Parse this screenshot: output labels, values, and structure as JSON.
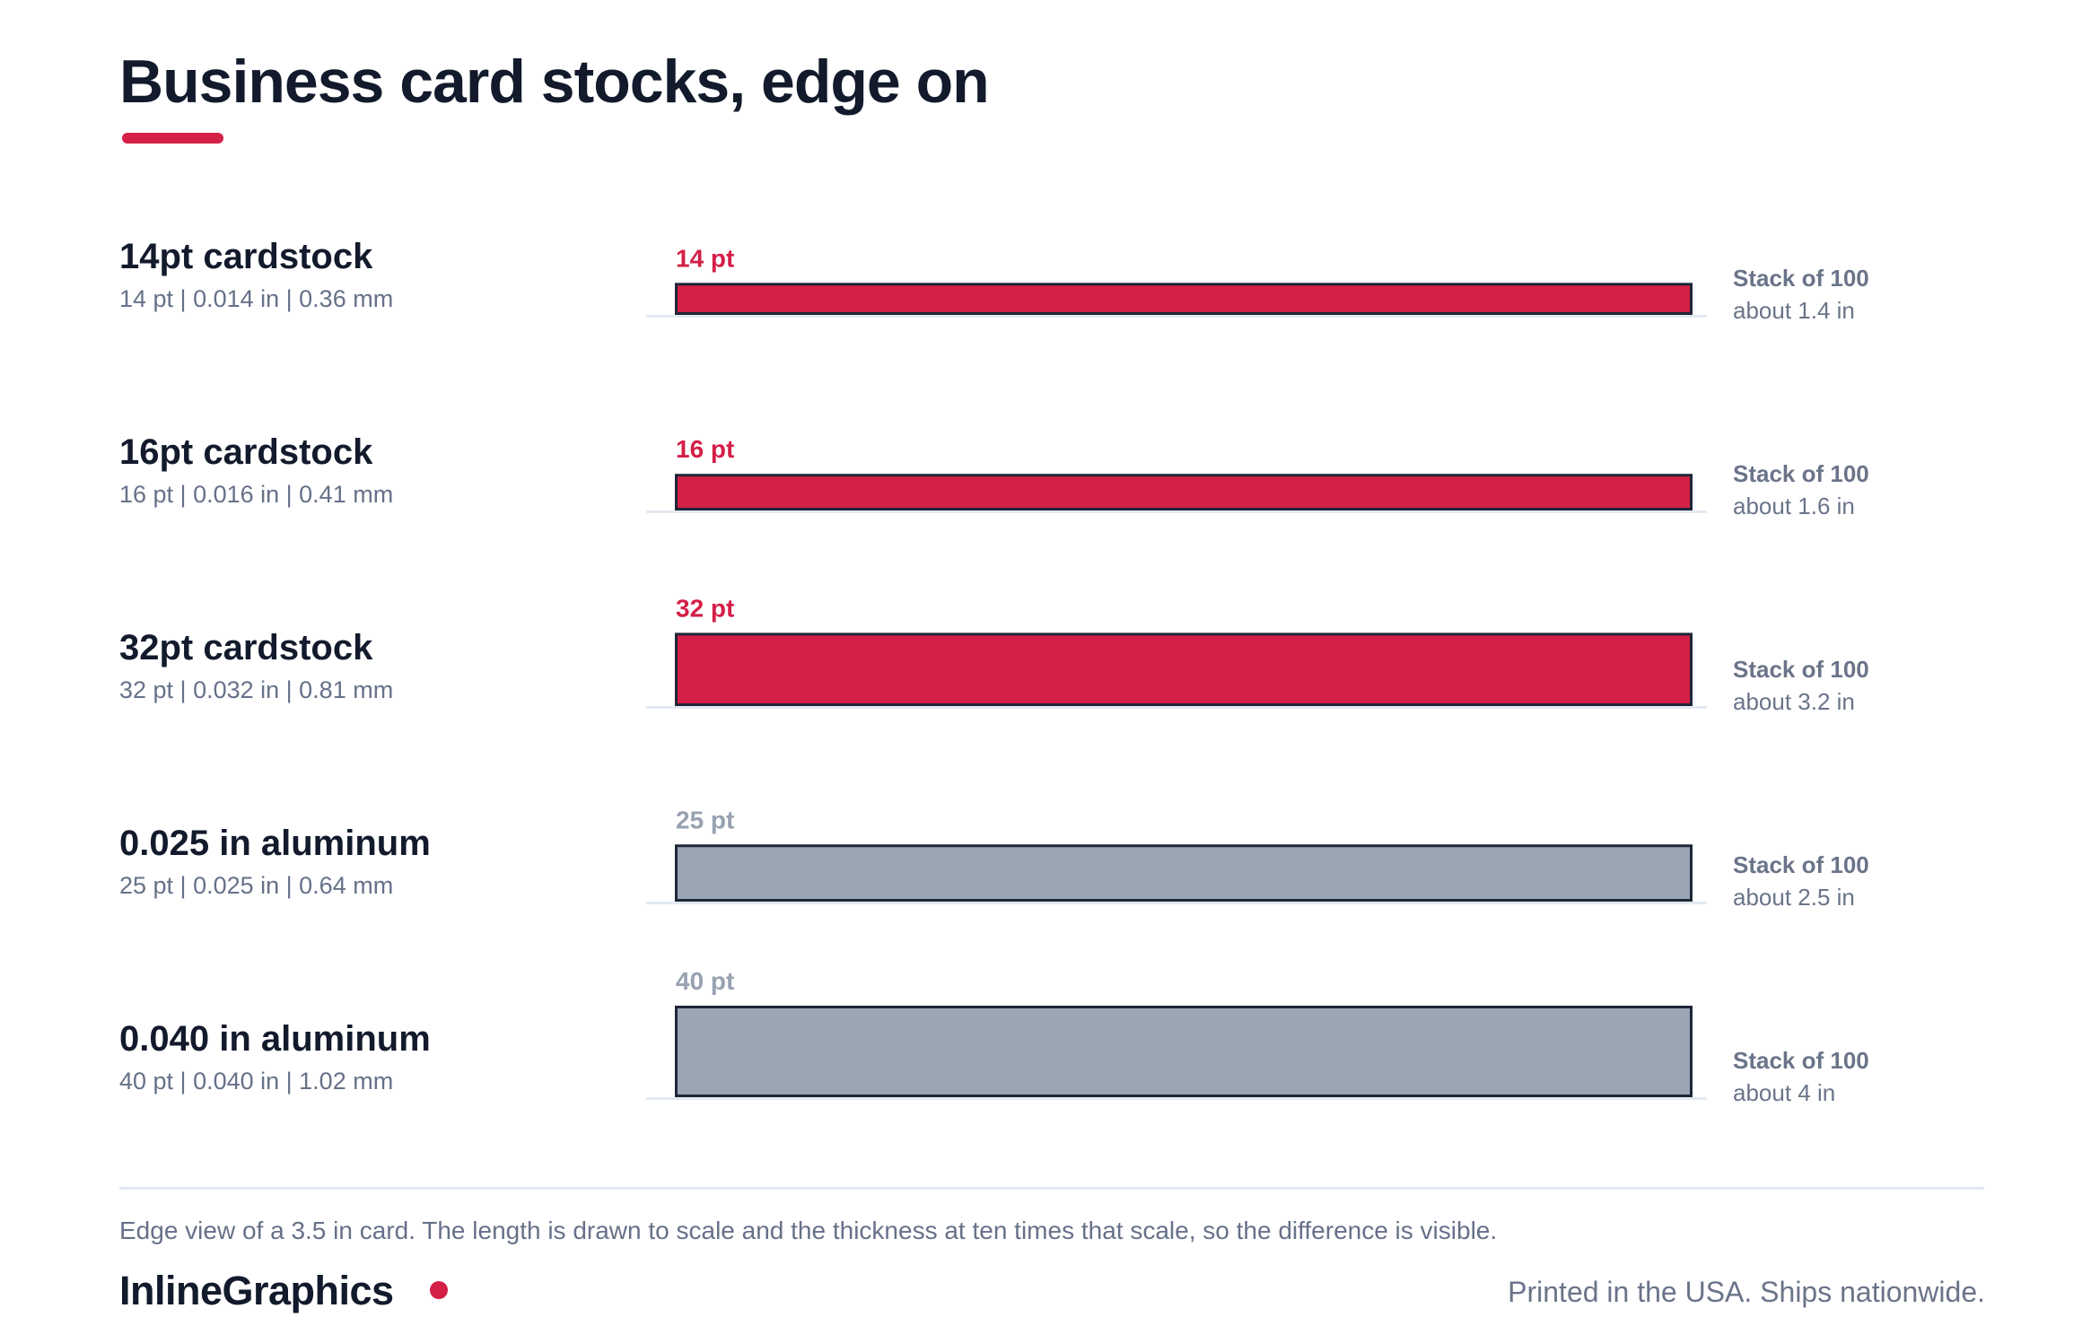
{
  "page": {
    "title": "Business card stocks, edge on"
  },
  "rows": [
    {
      "name": "14pt cardstock",
      "specs": "14 pt | 0.014 in | 0.36 mm",
      "stack_title": "Stack of 100",
      "stack_value": "about 1.4 in"
    },
    {
      "name": "16pt cardstock",
      "specs": "16 pt | 0.016 in | 0.41 mm",
      "stack_title": "Stack of 100",
      "stack_value": "about 1.6 in"
    },
    {
      "name": "32pt cardstock",
      "specs": "32 pt | 0.032 in | 0.81 mm",
      "stack_title": "Stack of 100",
      "stack_value": "about 3.2 in"
    },
    {
      "name": "0.025 in aluminum",
      "specs": "25 pt | 0.025 in | 0.64 mm",
      "stack_title": "Stack of 100",
      "stack_value": "about 2.5 in"
    },
    {
      "name": "0.040 in aluminum",
      "specs": "40 pt | 0.040 in | 1.02 mm",
      "stack_title": "Stack of 100",
      "stack_value": "about 4 in"
    }
  ],
  "chart_data": {
    "type": "bar",
    "categories": [
      "14pt cardstock",
      "16pt cardstock",
      "32pt cardstock",
      "0.025 in aluminum",
      "0.040 in aluminum"
    ],
    "values": [
      14,
      16,
      32,
      25,
      40
    ],
    "unit": "pt",
    "data_labels": [
      "14 pt",
      "16 pt",
      "32 pt",
      "25 pt",
      "40 pt"
    ],
    "card_length_in": 3.5,
    "materials": [
      "cardstock",
      "cardstock",
      "cardstock",
      "aluminum",
      "aluminum"
    ],
    "colors": {
      "cardstock": "#d41f47",
      "aluminum": "#9aa6b3",
      "bar_outline": "#1f2637",
      "cardstock_label": "#d41f47",
      "aluminum_label": "#97a1b0",
      "baseline": "#e3e9f1"
    },
    "title": "Business card stocks, edge on",
    "xlabel": "",
    "ylabel": "",
    "grid": false,
    "legend": "none"
  },
  "footer": {
    "caption": "Edge view of a 3.5 in card. The length is drawn to scale and the thickness at ten times that scale, so the difference is visible.",
    "brand": "InlineGraphics",
    "tagline": "Printed in the USA. Ships nationwide."
  },
  "brand_color": "#d41f47"
}
